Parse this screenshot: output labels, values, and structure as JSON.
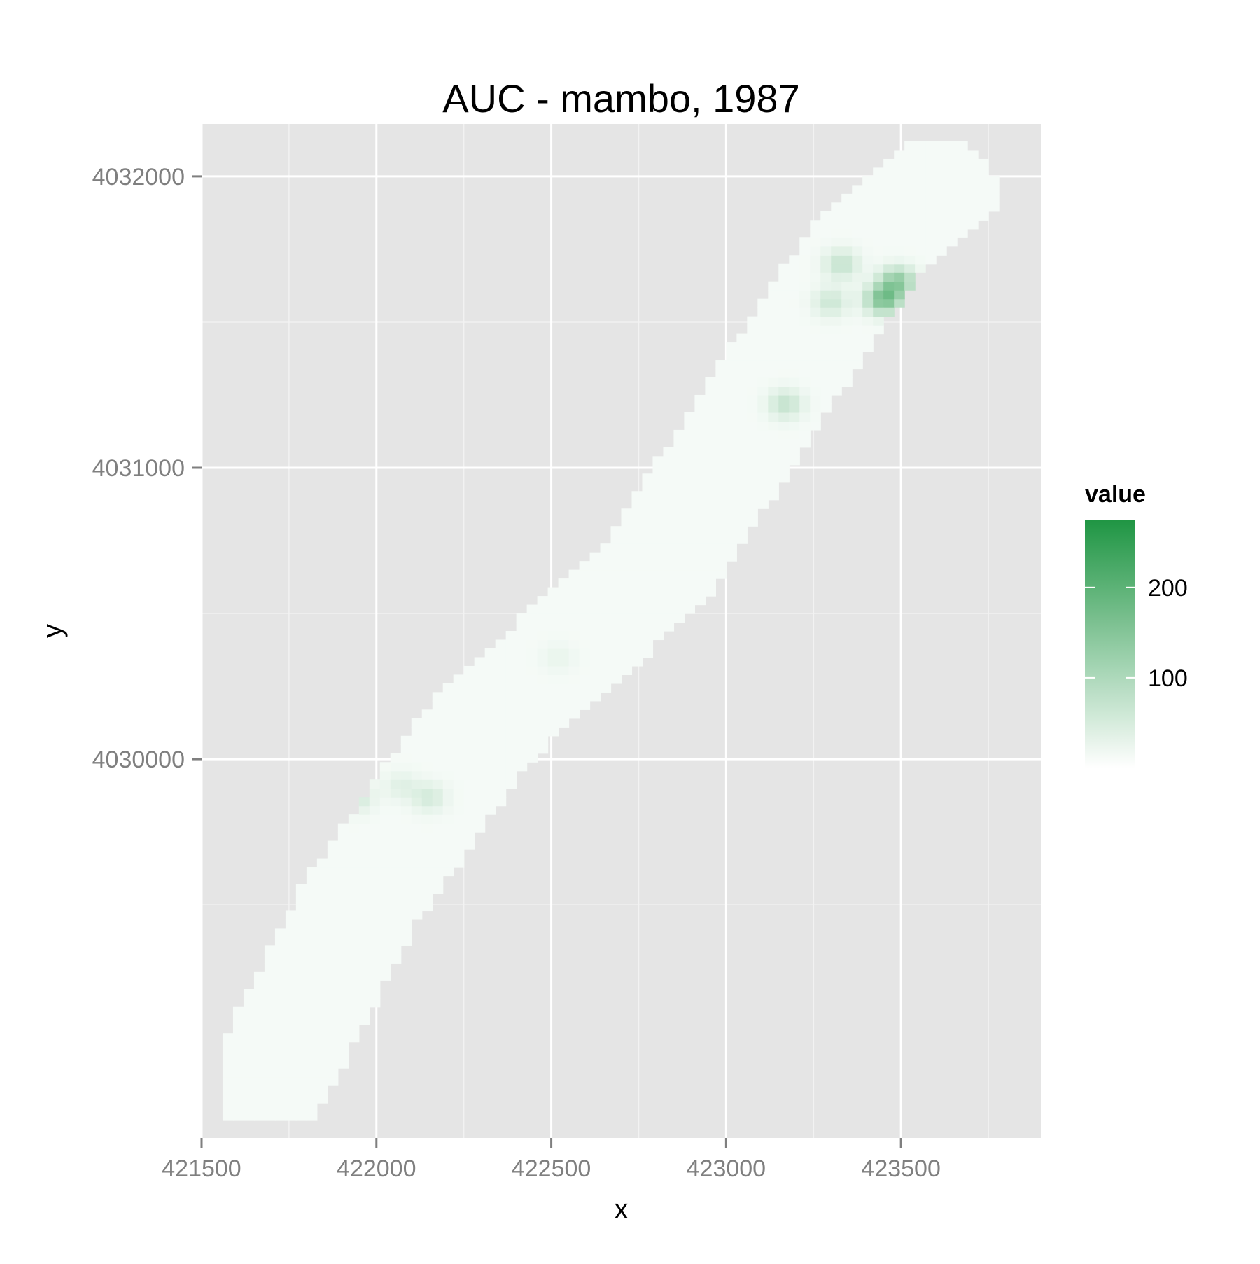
{
  "chart_data": {
    "type": "heatmap",
    "title": "AUC - mambo, 1987",
    "xlabel": "x",
    "ylabel": "y",
    "xlim": [
      421500,
      423900
    ],
    "ylim": [
      4028700,
      4032180
    ],
    "x_ticks": [
      421500,
      422000,
      422500,
      423000,
      423500
    ],
    "x_tick_labels": [
      "421500",
      "422000",
      "422500",
      "423000",
      "423500"
    ],
    "y_ticks": [
      4030000,
      4031000,
      4032000
    ],
    "y_tick_labels": [
      "4030000",
      "4031000",
      "4032000"
    ],
    "grid": true,
    "legend": {
      "title": "value",
      "position": "right",
      "min": 0,
      "max": 275,
      "breaks": [
        100,
        200
      ],
      "break_labels": [
        "100",
        "200"
      ],
      "low_color": "#ffffff",
      "high_color": "#1f9543"
    },
    "cell_size": 30,
    "band_centerline": [
      [
        421650,
        4028800
      ],
      [
        421950,
        4029500
      ],
      [
        422300,
        4030100
      ],
      [
        422800,
        4030650
      ],
      [
        423150,
        4031300
      ],
      [
        423400,
        4031750
      ],
      [
        423600,
        4031950
      ]
    ],
    "band_half_width": 175,
    "background_value": 12,
    "hotspots": [
      {
        "x": 423450,
        "y": 4031580,
        "value": 150
      },
      {
        "x": 423490,
        "y": 4031640,
        "value": 120
      },
      {
        "x": 423330,
        "y": 4031700,
        "value": 60
      },
      {
        "x": 423300,
        "y": 4031570,
        "value": 50
      },
      {
        "x": 423170,
        "y": 4031220,
        "value": 60
      },
      {
        "x": 421940,
        "y": 4029870,
        "value": 45
      },
      {
        "x": 422150,
        "y": 4029870,
        "value": 40
      },
      {
        "x": 422070,
        "y": 4029910,
        "value": 25
      },
      {
        "x": 422520,
        "y": 4030350,
        "value": 15
      }
    ]
  }
}
